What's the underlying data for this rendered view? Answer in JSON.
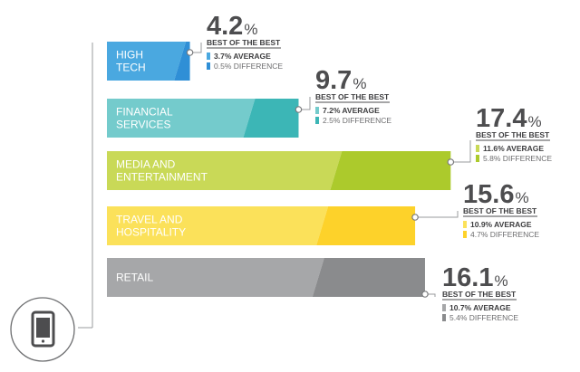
{
  "chart_data": {
    "type": "bar",
    "orientation": "horizontal",
    "stacked": true,
    "categories": [
      "HIGH TECH",
      "FINANCIAL SERVICES",
      "MEDIA AND ENTERTAINMENT",
      "TRAVEL AND HOSPITALITY",
      "RETAIL"
    ],
    "category_lines": [
      [
        "HIGH",
        "TECH"
      ],
      [
        "FINANCIAL",
        "SERVICES"
      ],
      [
        "MEDIA AND",
        "ENTERTAINMENT"
      ],
      [
        "TRAVEL AND",
        "HOSPITALITY"
      ],
      [
        "RETAIL"
      ]
    ],
    "best_of_the_best": [
      4.2,
      9.7,
      17.4,
      15.6,
      16.1
    ],
    "best_display": [
      "4.2",
      "9.7",
      "17.4",
      "15.6",
      "16.1"
    ],
    "series": [
      {
        "name": "AVERAGE",
        "values": [
          3.7,
          7.2,
          11.6,
          10.9,
          10.7
        ]
      },
      {
        "name": "DIFFERENCE",
        "values": [
          0.5,
          2.5,
          5.8,
          4.7,
          5.4
        ]
      }
    ],
    "best_label": "BEST OF THE BEST",
    "avg_text": [
      "3.7% AVERAGE",
      "7.2% AVERAGE",
      "11.6% AVERAGE",
      "10.9% AVERAGE",
      "10.7% AVERAGE"
    ],
    "diff_text": [
      "0.5% DIFFERENCE",
      "2.5% DIFFERENCE",
      "5.8% DIFFERENCE",
      "4.7% DIFFERENCE",
      "5.4% DIFFERENCE"
    ],
    "percent_sign": "%",
    "colors": {
      "average": [
        "#4aa8e0",
        "#74cbcc",
        "#c9d957",
        "#fbe15a",
        "#a6a7a9"
      ],
      "difference": [
        "#2f8fd6",
        "#3cb6b6",
        "#acca2c",
        "#fdd22a",
        "#8a8b8d"
      ]
    },
    "icon": "tablet-icon",
    "grid": false,
    "legend": "none"
  }
}
